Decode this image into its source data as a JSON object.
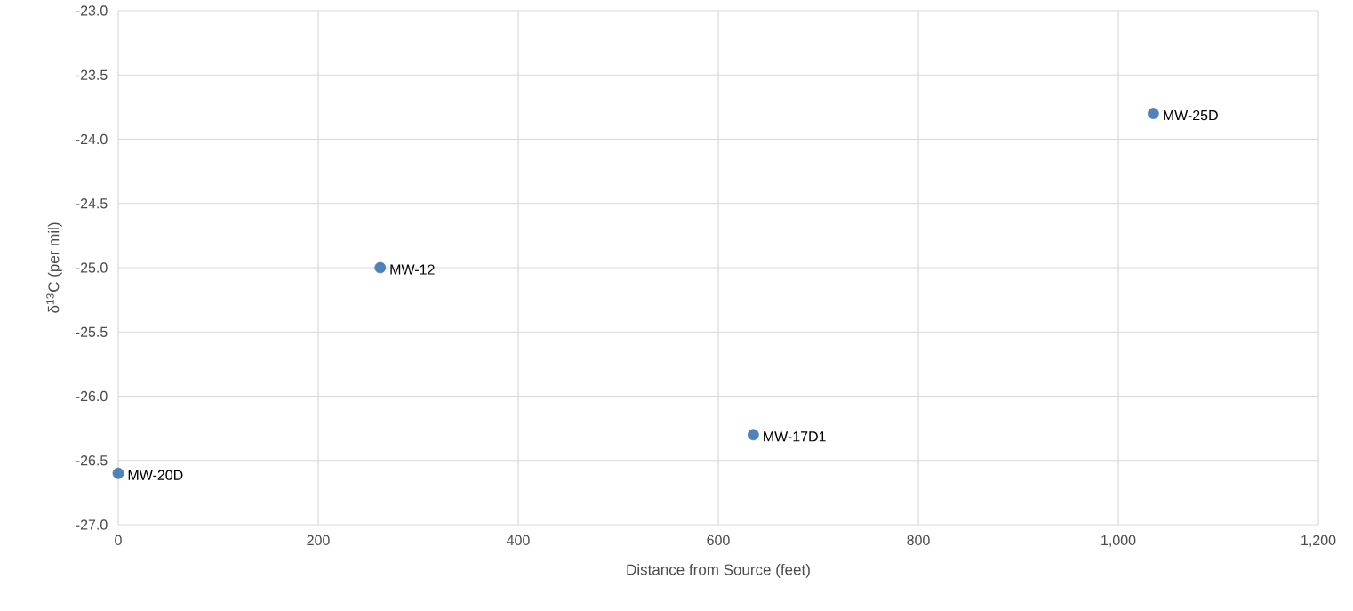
{
  "chart_data": {
    "type": "scatter",
    "xlabel": "Distance from Source (feet)",
    "ylabel": "δ$^{13}$C (per mil)",
    "series": [
      {
        "color": "#4f81bd",
        "x": [
          0,
          262,
          635,
          1035
        ],
        "values": [
          -26.6,
          -25.0,
          -26.3,
          -23.8
        ]
      }
    ],
    "annotations": [
      {
        "text": "MW-20D",
        "x": 0,
        "y": -26.6
      },
      {
        "text": "MW-12",
        "x": 262,
        "y": -25.0
      },
      {
        "text": "MW-17D1",
        "x": 635,
        "y": -26.3
      },
      {
        "text": "MW-25D",
        "x": 1035,
        "y": -23.8
      }
    ],
    "xlim": [
      0,
      1200
    ],
    "ylim": [
      -27.0,
      -23.0
    ],
    "xticks": [
      0,
      200,
      400,
      600,
      800,
      {
        "value": 1000,
        "label": "1,000"
      },
      {
        "value": 1200,
        "label": "1,200"
      }
    ],
    "yticks": [
      {
        "value": -27.0,
        "label": "-27.0"
      },
      {
        "value": -26.5,
        "label": "-26.5"
      },
      {
        "value": -26.0,
        "label": "-26.0"
      },
      {
        "value": -25.5,
        "label": "-25.5"
      },
      {
        "value": -25.0,
        "label": "-25.0"
      },
      {
        "value": -24.5,
        "label": "-24.5"
      },
      {
        "value": -24.0,
        "label": "-24.0"
      },
      {
        "value": -23.5,
        "label": "-23.5"
      },
      {
        "value": -23.0,
        "label": "-23.0"
      }
    ],
    "grid": true,
    "marker": "circle"
  }
}
